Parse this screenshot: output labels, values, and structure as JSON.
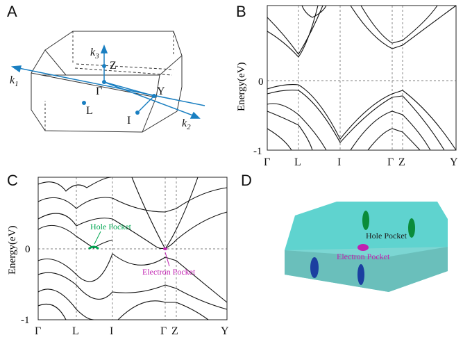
{
  "panels": {
    "a": {
      "letter": "A",
      "labels": {
        "k1": "k",
        "k1_sub": "1",
        "k2": "k",
        "k2_sub": "2",
        "k3": "k",
        "k3_sub": "3",
        "z": "Z",
        "gamma": "Γ",
        "y": "Y",
        "l": "L",
        "i": "I"
      }
    },
    "b": {
      "letter": "B",
      "ylabel": "Energy(eV)",
      "yticks": [
        "0",
        "-1"
      ],
      "xticks": [
        "Γ",
        "L",
        "I",
        "Γ",
        "Z",
        "Y"
      ]
    },
    "c": {
      "letter": "C",
      "ylabel": "Energy(eV)",
      "yticks": [
        "0",
        "-1"
      ],
      "xticks": [
        "Γ",
        "L",
        "I",
        "Γ",
        "Z",
        "Y"
      ],
      "annotations": {
        "hole": "Hole Pocket",
        "electron": "Electron Pocket"
      }
    },
    "d": {
      "letter": "D",
      "annotations": {
        "hole": "Hole Pocket",
        "electron": "Electron Pocket"
      }
    }
  },
  "colors": {
    "line": "#111111",
    "arrow_blue": "#1a7fc1",
    "hole_green": "#00a651",
    "electron_magenta": "#c020b0",
    "bz_cyan": "#5fd3cf"
  }
}
